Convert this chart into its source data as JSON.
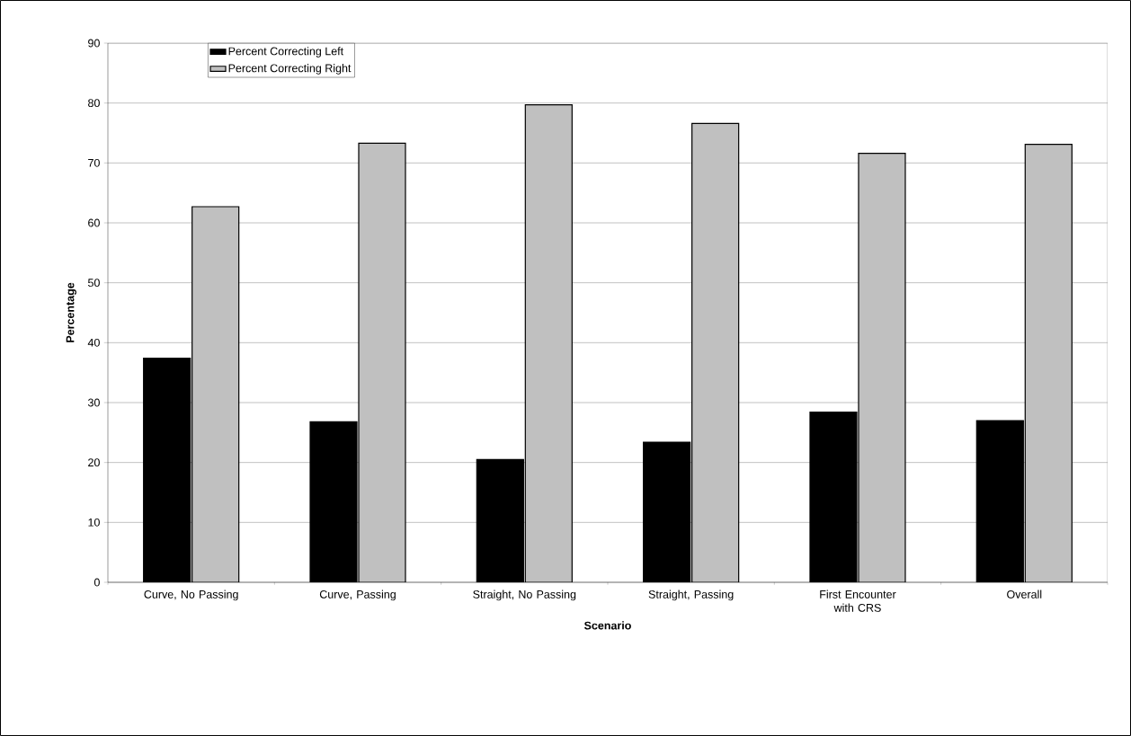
{
  "chart_data": {
    "type": "bar",
    "xlabel": "Scenario",
    "ylabel": "Percentage",
    "categories": [
      "Curve, No Passing",
      "Curve, Passing",
      "Straight, No Passing",
      "Straight, Passing",
      "First Encounter with CRS",
      "Overall"
    ],
    "series": [
      {
        "name": "Percent Correcting Left",
        "color": "#000000",
        "values": [
          37.4,
          26.8,
          20.5,
          23.4,
          28.4,
          27.0
        ]
      },
      {
        "name": "Percent Correcting Right",
        "color": "#c0c0c0",
        "values": [
          62.7,
          73.3,
          79.7,
          76.6,
          71.6,
          73.1
        ]
      }
    ],
    "ylim": [
      0,
      90
    ],
    "yticks": [
      0,
      10,
      20,
      30,
      40,
      50,
      60,
      70,
      80,
      90
    ],
    "grid": "y",
    "legend": "top left"
  }
}
